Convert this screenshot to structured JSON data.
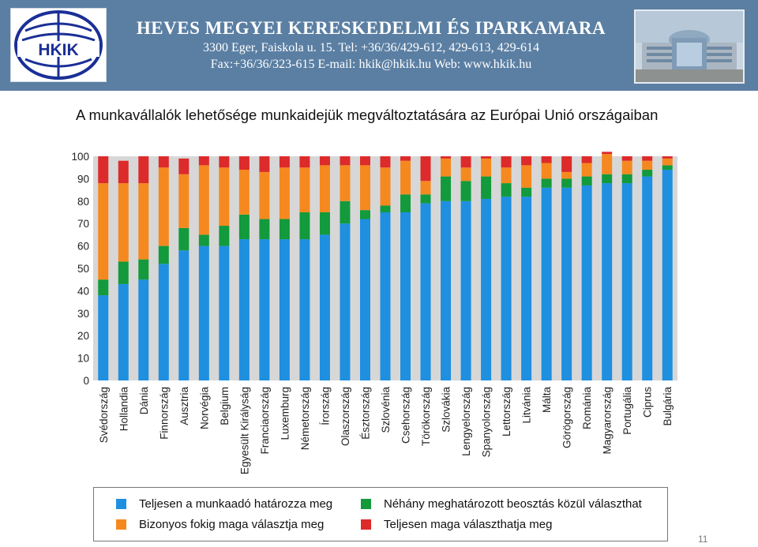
{
  "header": {
    "title": "HEVES MEGYEI KERESKEDELMI ÉS IPARKAMARA",
    "line1": "3300 Eger, Faiskola u. 15.   Tel: +36/36/429-612, 429-613, 429-614",
    "line2": "Fax:+36/36/323-615   E-mail: hkik@hkik.hu   Web: www.hkik.hu",
    "logo_text": "HKIK"
  },
  "page_number": "11",
  "chart_data": {
    "type": "bar",
    "stacked": true,
    "title": "A munkavállalók lehetősége munkaidejük megváltoztatására az Európai Unió országaiban",
    "xlabel": "",
    "ylabel": "",
    "ylim": [
      0,
      100
    ],
    "yticks": [
      0,
      10,
      20,
      30,
      40,
      50,
      60,
      70,
      80,
      90,
      100
    ],
    "grid": false,
    "legend_position": "bottom",
    "categories": [
      "Svédország",
      "Hollandia",
      "Dánia",
      "Finnország",
      "Ausztria",
      "Norvégia",
      "Belgium",
      "Egyesült Királyság",
      "Franciaország",
      "Luxemburg",
      "Németország",
      "Írország",
      "Olaszország",
      "Észtország",
      "Szlovénia",
      "Csehország",
      "Törökország",
      "Szlovákia",
      "Lengyelország",
      "Spanyolország",
      "Lettország",
      "Litvánia",
      "Málta",
      "Görögország",
      "Románia",
      "Magyarország",
      "Portugália",
      "Ciprus",
      "Bulgária"
    ],
    "series": [
      {
        "name": "Teljesen a munkaadó határozza meg",
        "color": "#1f8fe0",
        "values": [
          38,
          43,
          45,
          52,
          58,
          60,
          60,
          63,
          63,
          63,
          63,
          65,
          70,
          72,
          75,
          75,
          79,
          80,
          80,
          81,
          82,
          82,
          86,
          86,
          87,
          88,
          88,
          91,
          94
        ]
      },
      {
        "name": "Néhány meghatározott beosztás közül választhat",
        "color": "#129a3c",
        "values": [
          7,
          10,
          9,
          8,
          10,
          5,
          9,
          11,
          9,
          9,
          12,
          10,
          10,
          4,
          3,
          8,
          4,
          11,
          9,
          10,
          6,
          4,
          4,
          4,
          4,
          4,
          4,
          3,
          2
        ]
      },
      {
        "name": "Bizonyos fokig maga választja meg",
        "color": "#f5891f",
        "values": [
          43,
          35,
          34,
          35,
          24,
          31,
          26,
          20,
          21,
          23,
          20,
          21,
          16,
          20,
          17,
          15,
          6,
          8,
          6,
          8,
          7,
          10,
          7,
          3,
          6,
          9,
          6,
          4,
          3
        ]
      },
      {
        "name": "Teljesen maga választhatja meg",
        "color": "#dd2a2a",
        "values": [
          12,
          10,
          12,
          5,
          7,
          4,
          5,
          6,
          7,
          5,
          5,
          4,
          4,
          4,
          5,
          2,
          11,
          1,
          5,
          1,
          5,
          4,
          3,
          7,
          3,
          1,
          2,
          2,
          1
        ]
      }
    ]
  }
}
